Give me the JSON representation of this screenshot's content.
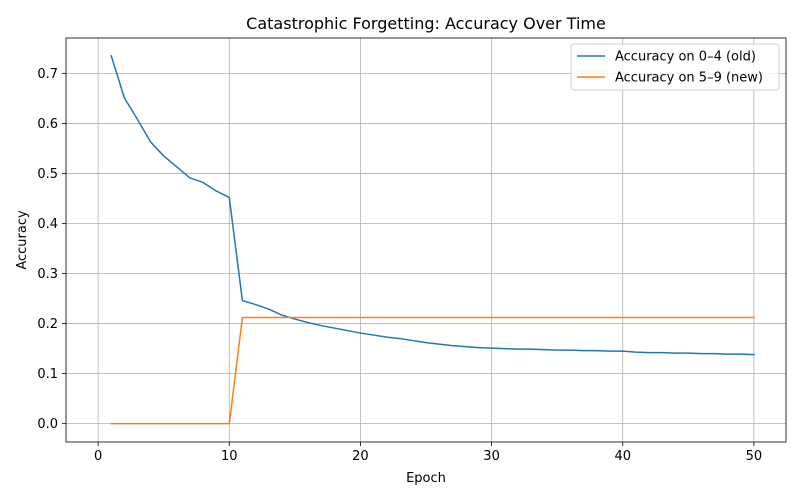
{
  "chart_data": {
    "type": "line",
    "title": "Catastrophic Forgetting: Accuracy Over Time",
    "xlabel": "Epoch",
    "ylabel": "Accuracy",
    "xlim": [
      -2.45,
      52.45
    ],
    "ylim": [
      -0.0367,
      0.7707
    ],
    "xticks": [
      0,
      10,
      20,
      30,
      40,
      50
    ],
    "yticks": [
      0.0,
      0.1,
      0.2,
      0.3,
      0.4,
      0.5,
      0.6,
      0.7
    ],
    "xtick_labels": [
      "0",
      "10",
      "20",
      "30",
      "40",
      "50"
    ],
    "ytick_labels": [
      "0.0",
      "0.1",
      "0.2",
      "0.3",
      "0.4",
      "0.5",
      "0.6",
      "0.7"
    ],
    "grid": true,
    "legend_position": "top-right",
    "x": [
      1,
      2,
      3,
      4,
      5,
      6,
      7,
      8,
      9,
      10,
      11,
      12,
      13,
      14,
      15,
      16,
      17,
      18,
      19,
      20,
      21,
      22,
      23,
      24,
      25,
      26,
      27,
      28,
      29,
      30,
      31,
      32,
      33,
      34,
      35,
      36,
      37,
      38,
      39,
      40,
      41,
      42,
      43,
      44,
      45,
      46,
      47,
      48,
      49,
      50
    ],
    "series": [
      {
        "name": "Accuracy on 0–4 (old)",
        "color": "#1f77b4",
        "values": [
          0.735,
          0.651,
          0.608,
          0.563,
          0.535,
          0.513,
          0.491,
          0.482,
          0.465,
          0.452,
          0.246,
          0.238,
          0.229,
          0.217,
          0.209,
          0.202,
          0.196,
          0.191,
          0.186,
          0.181,
          0.177,
          0.173,
          0.17,
          0.166,
          0.162,
          0.159,
          0.156,
          0.154,
          0.152,
          0.151,
          0.15,
          0.149,
          0.149,
          0.148,
          0.147,
          0.147,
          0.146,
          0.146,
          0.145,
          0.145,
          0.143,
          0.142,
          0.142,
          0.141,
          0.141,
          0.14,
          0.14,
          0.139,
          0.139,
          0.138
        ]
      },
      {
        "name": "Accuracy on 5–9 (new)",
        "color": "#ff7f0e",
        "values": [
          0,
          0,
          0,
          0,
          0,
          0,
          0,
          0,
          0,
          0,
          0.212,
          0.212,
          0.212,
          0.212,
          0.212,
          0.212,
          0.212,
          0.212,
          0.212,
          0.212,
          0.212,
          0.212,
          0.212,
          0.212,
          0.212,
          0.212,
          0.212,
          0.212,
          0.212,
          0.212,
          0.212,
          0.212,
          0.212,
          0.212,
          0.212,
          0.212,
          0.212,
          0.212,
          0.212,
          0.212,
          0.212,
          0.212,
          0.212,
          0.212,
          0.212,
          0.212,
          0.212,
          0.212,
          0.212,
          0.212
        ]
      }
    ]
  }
}
